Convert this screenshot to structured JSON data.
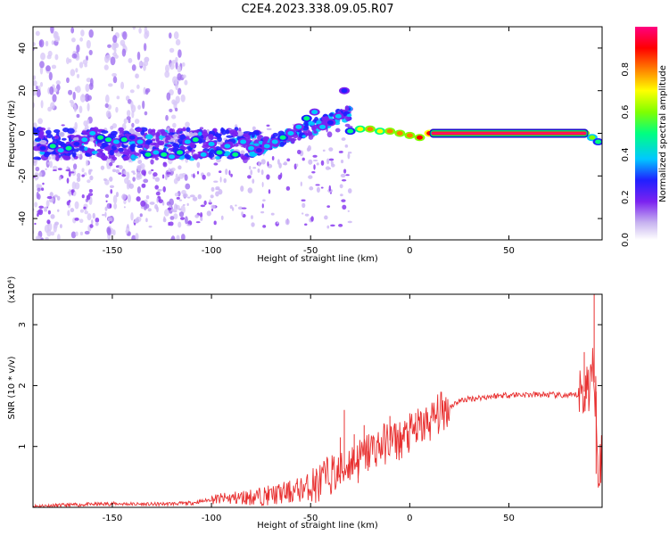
{
  "title": "C2E4.2023.338.09.05.R07",
  "chart_data": [
    {
      "type": "heatmap",
      "xlabel": "Height of straight line (km)",
      "ylabel": "Frequency (Hz)",
      "xlim": [
        -190,
        97
      ],
      "ylim": [
        -50,
        50
      ],
      "xticks": [
        -150,
        -100,
        -50,
        0,
        50
      ],
      "yticks": [
        -40,
        -20,
        0,
        20,
        40
      ],
      "colorbar": {
        "label": "Normalized spectral amplitude",
        "ticks": [
          0.0,
          0.2,
          0.4,
          0.6,
          0.8
        ],
        "range": [
          0,
          1
        ],
        "colors": [
          "#ffffff",
          "#c8b4f0",
          "#7b22f0",
          "#2020ff",
          "#00c8ff",
          "#00ff80",
          "#80ff00",
          "#ffff00",
          "#ff8000",
          "#ff0000",
          "#ff0080"
        ]
      },
      "series": [
        {
          "points": [
            [
              -185,
              -7,
              0.3
            ],
            [
              -180,
              -6,
              0.45
            ],
            [
              -176,
              -8,
              0.35
            ],
            [
              -172,
              -7,
              0.5
            ],
            [
              -168,
              -5,
              0.3
            ],
            [
              -164,
              -3,
              0.4
            ],
            [
              -160,
              0,
              0.35
            ],
            [
              -156,
              -2,
              0.45
            ],
            [
              -152,
              -3,
              0.5
            ],
            [
              -148,
              -4,
              0.4
            ],
            [
              -144,
              -3,
              0.45
            ],
            [
              -140,
              -2,
              0.3
            ],
            [
              -136,
              -4,
              0.4
            ],
            [
              -132,
              -10,
              0.5
            ],
            [
              -128,
              -9,
              0.35
            ],
            [
              -124,
              -10,
              0.45
            ],
            [
              -120,
              -11,
              0.4
            ],
            [
              -116,
              -9,
              0.5
            ],
            [
              -112,
              -4,
              0.35
            ],
            [
              -108,
              -3,
              0.45
            ],
            [
              -104,
              -10,
              0.4
            ],
            [
              -100,
              -5,
              0.35
            ],
            [
              -96,
              -9,
              0.45
            ],
            [
              -92,
              -6,
              0.4
            ],
            [
              -88,
              -10,
              0.45
            ],
            [
              -84,
              -4,
              0.4
            ],
            [
              -80,
              -7,
              0.35
            ],
            [
              -76,
              -8,
              0.3
            ],
            [
              -72,
              -6,
              0.4
            ],
            [
              -68,
              -4,
              0.35
            ],
            [
              -64,
              -2,
              0.45
            ],
            [
              -60,
              0,
              0.4
            ],
            [
              -56,
              3,
              0.35
            ],
            [
              -52,
              7,
              0.45
            ],
            [
              -48,
              10,
              0.4
            ],
            [
              -44,
              3,
              0.35
            ],
            [
              -40,
              5,
              0.3
            ],
            [
              -36,
              8,
              0.35
            ],
            [
              -33,
              20,
              0.3
            ],
            [
              -30,
              1,
              0.5
            ],
            [
              -25,
              2,
              0.7
            ],
            [
              -20,
              2,
              0.75
            ],
            [
              -15,
              1,
              0.7
            ],
            [
              -10,
              1,
              0.8
            ],
            [
              -5,
              0,
              0.75
            ],
            [
              0,
              -1,
              0.8
            ],
            [
              5,
              -2,
              0.85
            ],
            [
              10,
              0,
              0.9
            ],
            [
              20,
              0,
              0.95
            ],
            [
              30,
              0,
              0.97
            ],
            [
              40,
              0,
              0.98
            ],
            [
              50,
              0,
              0.98
            ],
            [
              60,
              0,
              0.98
            ],
            [
              70,
              0,
              0.97
            ],
            [
              80,
              0,
              0.95
            ],
            [
              88,
              0,
              0.85
            ],
            [
              92,
              -2,
              0.6
            ],
            [
              95,
              -4,
              0.45
            ]
          ]
        }
      ]
    },
    {
      "type": "line",
      "xlabel": "Height of straight line (km)",
      "ylabel": "SNR (10 * v/v)",
      "y_multiplier": "(x10⁴)",
      "xlim": [
        -190,
        97
      ],
      "ylim": [
        0,
        3.5
      ],
      "xticks": [
        -150,
        -100,
        -50,
        0,
        50
      ],
      "yticks": [
        1,
        2,
        3
      ],
      "series": [
        {
          "color": "#e83030",
          "x": [
            -190,
            -170,
            -150,
            -130,
            -110,
            -100,
            -90,
            -80,
            -70,
            -60,
            -50,
            -45,
            -40,
            -35,
            -30,
            -25,
            -20,
            -15,
            -10,
            -5,
            0,
            5,
            10,
            15,
            20,
            25,
            30,
            40,
            50,
            60,
            70,
            80,
            85,
            88,
            90,
            92,
            94,
            95,
            96
          ],
          "y": [
            0.02,
            0.04,
            0.06,
            0.05,
            0.07,
            0.13,
            0.15,
            0.17,
            0.2,
            0.25,
            0.35,
            0.4,
            0.55,
            0.55,
            0.75,
            0.8,
            0.95,
            1.0,
            1.1,
            1.1,
            1.2,
            1.3,
            1.4,
            1.55,
            1.65,
            1.75,
            1.78,
            1.82,
            1.85,
            1.85,
            1.85,
            1.83,
            1.85,
            1.9,
            2.0,
            2.2,
            1.9,
            0.8,
            0.75
          ],
          "spikes": [
            [
              -35,
              1.15
            ],
            [
              -33,
              1.6
            ],
            [
              -31,
              0.5
            ],
            [
              -28,
              1.2
            ],
            [
              -26,
              0.4
            ],
            [
              -23,
              1.35
            ],
            [
              -21,
              0.6
            ],
            [
              -10,
              1.5
            ],
            [
              -5,
              0.9
            ],
            [
              3,
              1.55
            ],
            [
              88,
              2.55
            ],
            [
              93,
              3.5
            ],
            [
              94,
              0.55
            ]
          ]
        }
      ]
    }
  ]
}
